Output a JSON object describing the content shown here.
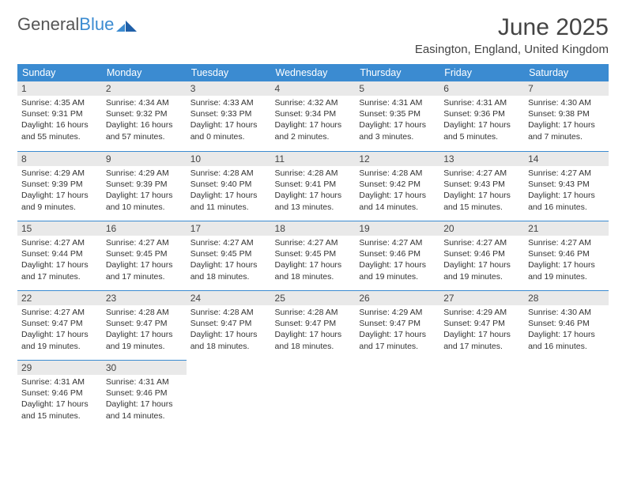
{
  "logo": {
    "text1": "General",
    "text2": "Blue"
  },
  "title": "June 2025",
  "location": "Easington, England, United Kingdom",
  "colors": {
    "header_bg": "#3b8bd1",
    "header_text": "#ffffff",
    "daynum_bg": "#e9e9e9",
    "border": "#3b8bd1",
    "text": "#333333"
  },
  "weekdays": [
    "Sunday",
    "Monday",
    "Tuesday",
    "Wednesday",
    "Thursday",
    "Friday",
    "Saturday"
  ],
  "days": [
    {
      "n": "1",
      "sunrise": "4:35 AM",
      "sunset": "9:31 PM",
      "daylight": "16 hours and 55 minutes."
    },
    {
      "n": "2",
      "sunrise": "4:34 AM",
      "sunset": "9:32 PM",
      "daylight": "16 hours and 57 minutes."
    },
    {
      "n": "3",
      "sunrise": "4:33 AM",
      "sunset": "9:33 PM",
      "daylight": "17 hours and 0 minutes."
    },
    {
      "n": "4",
      "sunrise": "4:32 AM",
      "sunset": "9:34 PM",
      "daylight": "17 hours and 2 minutes."
    },
    {
      "n": "5",
      "sunrise": "4:31 AM",
      "sunset": "9:35 PM",
      "daylight": "17 hours and 3 minutes."
    },
    {
      "n": "6",
      "sunrise": "4:31 AM",
      "sunset": "9:36 PM",
      "daylight": "17 hours and 5 minutes."
    },
    {
      "n": "7",
      "sunrise": "4:30 AM",
      "sunset": "9:38 PM",
      "daylight": "17 hours and 7 minutes."
    },
    {
      "n": "8",
      "sunrise": "4:29 AM",
      "sunset": "9:39 PM",
      "daylight": "17 hours and 9 minutes."
    },
    {
      "n": "9",
      "sunrise": "4:29 AM",
      "sunset": "9:39 PM",
      "daylight": "17 hours and 10 minutes."
    },
    {
      "n": "10",
      "sunrise": "4:28 AM",
      "sunset": "9:40 PM",
      "daylight": "17 hours and 11 minutes."
    },
    {
      "n": "11",
      "sunrise": "4:28 AM",
      "sunset": "9:41 PM",
      "daylight": "17 hours and 13 minutes."
    },
    {
      "n": "12",
      "sunrise": "4:28 AM",
      "sunset": "9:42 PM",
      "daylight": "17 hours and 14 minutes."
    },
    {
      "n": "13",
      "sunrise": "4:27 AM",
      "sunset": "9:43 PM",
      "daylight": "17 hours and 15 minutes."
    },
    {
      "n": "14",
      "sunrise": "4:27 AM",
      "sunset": "9:43 PM",
      "daylight": "17 hours and 16 minutes."
    },
    {
      "n": "15",
      "sunrise": "4:27 AM",
      "sunset": "9:44 PM",
      "daylight": "17 hours and 17 minutes."
    },
    {
      "n": "16",
      "sunrise": "4:27 AM",
      "sunset": "9:45 PM",
      "daylight": "17 hours and 17 minutes."
    },
    {
      "n": "17",
      "sunrise": "4:27 AM",
      "sunset": "9:45 PM",
      "daylight": "17 hours and 18 minutes."
    },
    {
      "n": "18",
      "sunrise": "4:27 AM",
      "sunset": "9:45 PM",
      "daylight": "17 hours and 18 minutes."
    },
    {
      "n": "19",
      "sunrise": "4:27 AM",
      "sunset": "9:46 PM",
      "daylight": "17 hours and 19 minutes."
    },
    {
      "n": "20",
      "sunrise": "4:27 AM",
      "sunset": "9:46 PM",
      "daylight": "17 hours and 19 minutes."
    },
    {
      "n": "21",
      "sunrise": "4:27 AM",
      "sunset": "9:46 PM",
      "daylight": "17 hours and 19 minutes."
    },
    {
      "n": "22",
      "sunrise": "4:27 AM",
      "sunset": "9:47 PM",
      "daylight": "17 hours and 19 minutes."
    },
    {
      "n": "23",
      "sunrise": "4:28 AM",
      "sunset": "9:47 PM",
      "daylight": "17 hours and 19 minutes."
    },
    {
      "n": "24",
      "sunrise": "4:28 AM",
      "sunset": "9:47 PM",
      "daylight": "17 hours and 18 minutes."
    },
    {
      "n": "25",
      "sunrise": "4:28 AM",
      "sunset": "9:47 PM",
      "daylight": "17 hours and 18 minutes."
    },
    {
      "n": "26",
      "sunrise": "4:29 AM",
      "sunset": "9:47 PM",
      "daylight": "17 hours and 17 minutes."
    },
    {
      "n": "27",
      "sunrise": "4:29 AM",
      "sunset": "9:47 PM",
      "daylight": "17 hours and 17 minutes."
    },
    {
      "n": "28",
      "sunrise": "4:30 AM",
      "sunset": "9:46 PM",
      "daylight": "17 hours and 16 minutes."
    },
    {
      "n": "29",
      "sunrise": "4:31 AM",
      "sunset": "9:46 PM",
      "daylight": "17 hours and 15 minutes."
    },
    {
      "n": "30",
      "sunrise": "4:31 AM",
      "sunset": "9:46 PM",
      "daylight": "17 hours and 14 minutes."
    }
  ],
  "labels": {
    "sunrise": "Sunrise:",
    "sunset": "Sunset:",
    "daylight": "Daylight:"
  }
}
